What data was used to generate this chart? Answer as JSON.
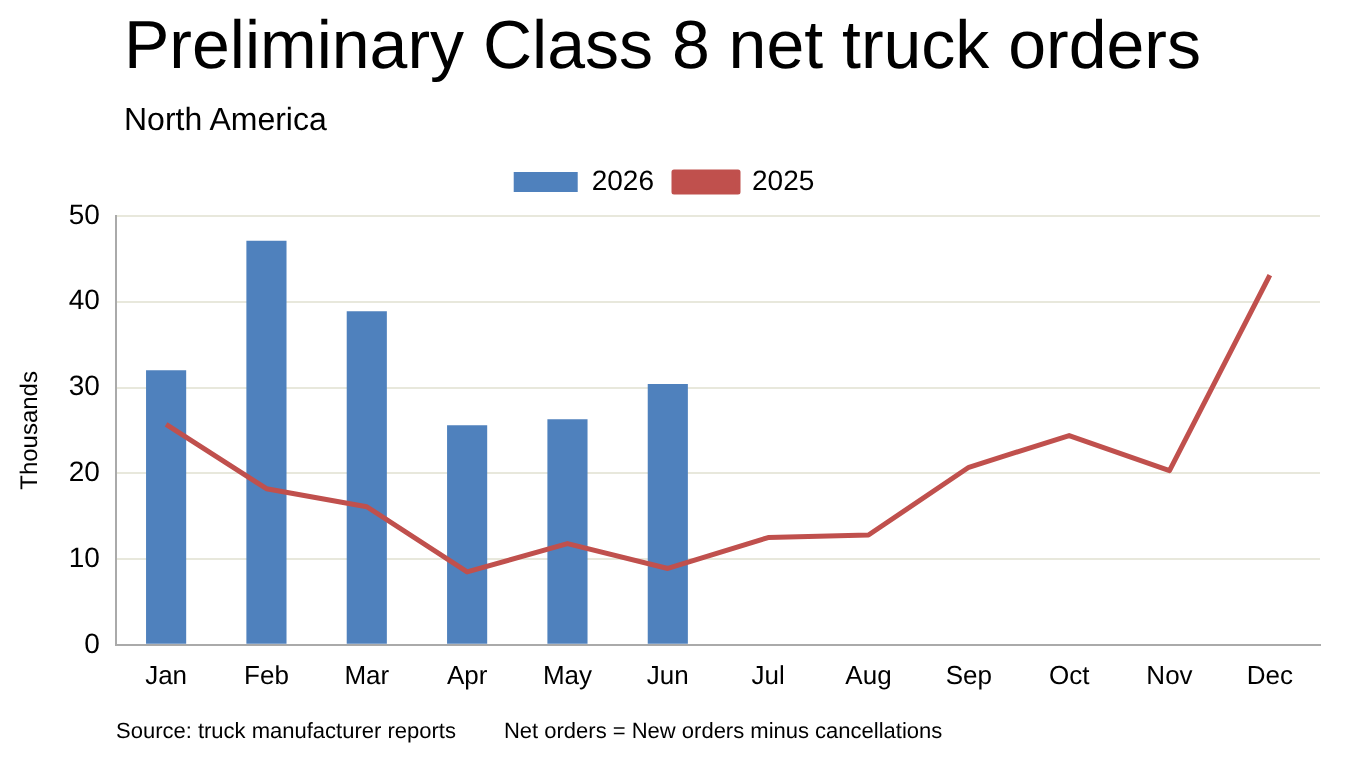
{
  "chart_data": {
    "type": "bar",
    "title": "Preliminary Class 8 net truck orders",
    "subtitle": "North America",
    "ylabel": "Thousands",
    "categories": [
      "Jan",
      "Feb",
      "Mar",
      "Apr",
      "May",
      "Jun",
      "Jul",
      "Aug",
      "Sep",
      "Oct",
      "Nov",
      "Dec"
    ],
    "series": [
      {
        "name": "2026",
        "color": "#4f81bd",
        "values": [
          32,
          47.1,
          38.9,
          25.6,
          26.3,
          30.4,
          null,
          null,
          null,
          null,
          null,
          null
        ]
      },
      {
        "name": "2025",
        "type": "line",
        "color": "#c0504d",
        "values": [
          25.7,
          18.2,
          16.1,
          8.5,
          11.8,
          8.9,
          12.5,
          12.8,
          20.7,
          24.4,
          20.3,
          43.1
        ]
      }
    ],
    "ylim": [
      0,
      50
    ],
    "yticks": [
      0,
      10,
      20,
      30,
      40,
      50
    ],
    "grid": "y",
    "legend": "top",
    "marker": "none",
    "annotations": [
      "Source: truck manufacturer reports",
      "Net orders = New orders minus cancellations"
    ]
  }
}
